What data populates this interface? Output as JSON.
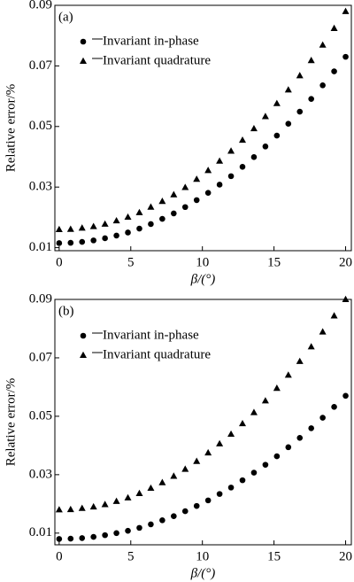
{
  "chart_data": [
    {
      "type": "scatter",
      "annotation": "(a)",
      "xlabel": "β/(°)",
      "ylabel": "Relative error/%",
      "xlim": [
        -0.3,
        20.4
      ],
      "ylim": [
        0.009,
        0.09
      ],
      "xticks": [
        0,
        5,
        10,
        15,
        20
      ],
      "yticks": [
        0.01,
        0.03,
        0.05,
        0.07,
        0.09
      ],
      "legend": "upper left",
      "x": [
        0,
        0.8,
        1.6,
        2.4,
        3.2,
        4,
        4.8,
        5.6,
        6.4,
        7.2,
        8,
        8.8,
        9.6,
        10.4,
        11.2,
        12,
        12.8,
        13.6,
        14.4,
        15.2,
        16,
        16.8,
        17.6,
        18.4,
        19.2,
        20
      ],
      "series": [
        {
          "name": "Invariant in-phase",
          "marker": "circle",
          "color": "#000000",
          "values": [
            0.0115,
            0.0116,
            0.0119,
            0.0124,
            0.0131,
            0.014,
            0.015,
            0.0163,
            0.0178,
            0.0195,
            0.0213,
            0.0234,
            0.0257,
            0.0281,
            0.0308,
            0.0336,
            0.0367,
            0.0399,
            0.0434,
            0.047,
            0.0509,
            0.0549,
            0.0591,
            0.0636,
            0.0682,
            0.073
          ]
        },
        {
          "name": "Invariant quadrature",
          "marker": "triangle",
          "color": "#000000",
          "values": [
            0.016,
            0.0161,
            0.0165,
            0.017,
            0.0178,
            0.0189,
            0.0201,
            0.0216,
            0.0234,
            0.0253,
            0.0275,
            0.0299,
            0.0326,
            0.0355,
            0.0386,
            0.0419,
            0.0455,
            0.0493,
            0.0533,
            0.0576,
            0.0621,
            0.0668,
            0.0718,
            0.0769,
            0.0824,
            0.088
          ]
        }
      ]
    },
    {
      "type": "scatter",
      "annotation": "(b)",
      "xlabel": "β/(°)",
      "ylabel": "Relative error/%",
      "xlim": [
        -0.3,
        20.4
      ],
      "ylim": [
        0.006,
        0.09
      ],
      "xticks": [
        0,
        5,
        10,
        15,
        20
      ],
      "yticks": [
        0.01,
        0.03,
        0.05,
        0.07,
        0.09
      ],
      "legend": "upper left",
      "x": [
        0,
        0.8,
        1.6,
        2.4,
        3.2,
        4,
        4.8,
        5.6,
        6.4,
        7.2,
        8,
        8.8,
        9.6,
        10.4,
        11.2,
        12,
        12.8,
        13.6,
        14.4,
        15.2,
        16,
        16.8,
        17.6,
        18.4,
        19.2,
        20
      ],
      "series": [
        {
          "name": "Invariant in-phase",
          "marker": "circle",
          "color": "#000000",
          "values": [
            0.008,
            0.0081,
            0.0083,
            0.0087,
            0.0093,
            0.01,
            0.0108,
            0.0118,
            0.013,
            0.0144,
            0.0158,
            0.0175,
            0.0193,
            0.0212,
            0.0234,
            0.0256,
            0.0281,
            0.0307,
            0.0334,
            0.0363,
            0.0394,
            0.0426,
            0.0459,
            0.0495,
            0.0532,
            0.057
          ]
        },
        {
          "name": "Invariant quadrature",
          "marker": "triangle",
          "color": "#000000",
          "values": [
            0.018,
            0.0181,
            0.0185,
            0.019,
            0.0198,
            0.0209,
            0.0221,
            0.0236,
            0.0254,
            0.0273,
            0.0295,
            0.0319,
            0.0346,
            0.0375,
            0.0406,
            0.0439,
            0.0475,
            0.0513,
            0.0553,
            0.0596,
            0.0641,
            0.0688,
            0.0738,
            0.0789,
            0.0844,
            0.09
          ]
        }
      ]
    }
  ]
}
